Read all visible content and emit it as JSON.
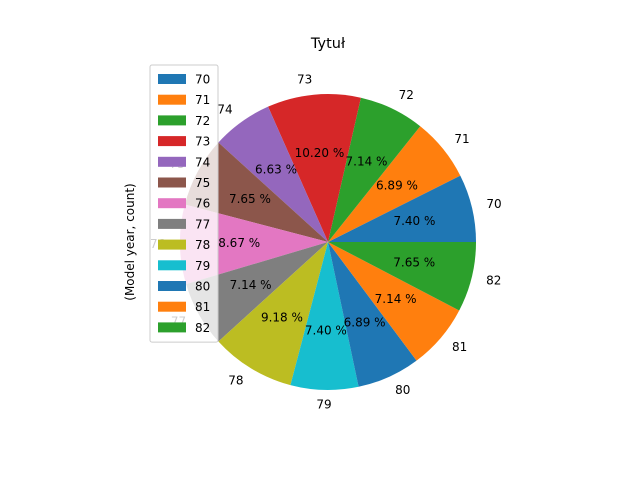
{
  "chart_data": {
    "type": "pie",
    "title": "Tytuł",
    "ylabel": "(Model year, count)",
    "categories": [
      "70",
      "71",
      "72",
      "73",
      "74",
      "75",
      "76",
      "77",
      "78",
      "79",
      "80",
      "81",
      "82"
    ],
    "values": [
      7.4,
      6.89,
      7.14,
      10.2,
      6.63,
      7.65,
      8.67,
      7.14,
      9.18,
      7.4,
      6.89,
      7.14,
      7.65
    ],
    "pct_labels": [
      "7.40 %",
      "6.89 %",
      "7.14 %",
      "10.20 %",
      "6.63 %",
      "7.65 %",
      "8.67 %",
      "7.14 %",
      "9.18 %",
      "7.40 %",
      "6.89 %",
      "7.14 %",
      "7.65 %"
    ],
    "colors": [
      "#1f77b4",
      "#ff7f0e",
      "#2ca02c",
      "#d62728",
      "#9467bd",
      "#8c564b",
      "#e377c2",
      "#7f7f7f",
      "#bcbd22",
      "#17becf",
      "#1f77b4",
      "#ff7f0e",
      "#2ca02c"
    ],
    "legend": {
      "placement": "upper-left",
      "entries": [
        "70",
        "71",
        "72",
        "73",
        "74",
        "75",
        "76",
        "77",
        "78",
        "79",
        "80",
        "81",
        "82"
      ]
    },
    "start_angle_deg": 0,
    "direction": "counterclockwise"
  }
}
